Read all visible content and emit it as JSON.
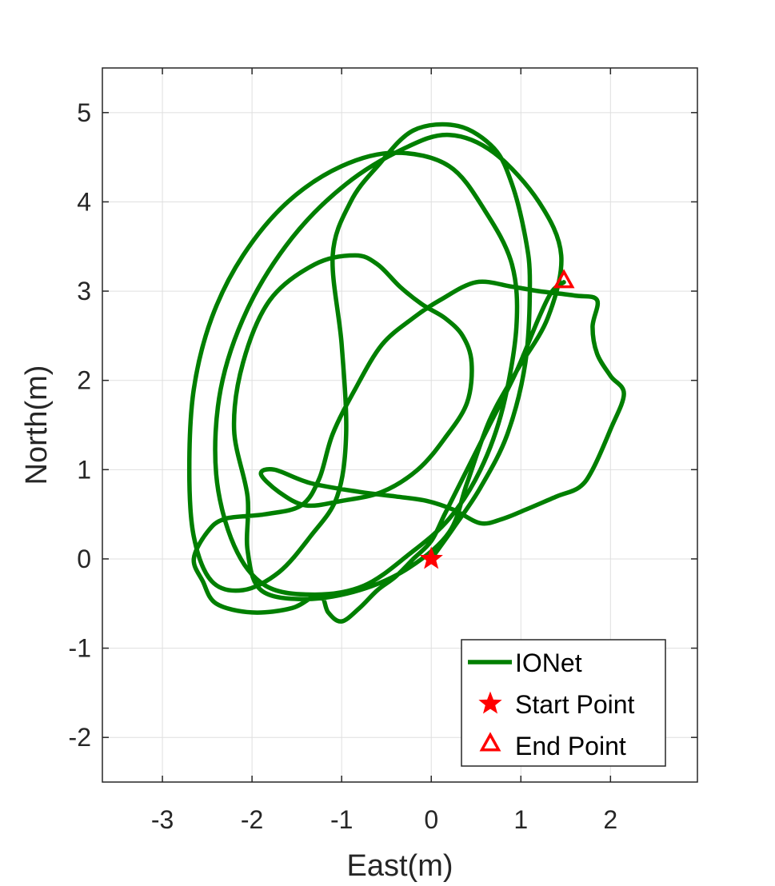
{
  "chart_data": {
    "type": "line",
    "title": "",
    "xlabel": "East(m)",
    "ylabel": "North(m)",
    "xlim": [
      -3.67,
      2.97
    ],
    "ylim": [
      -2.5,
      5.5
    ],
    "xticks": [
      -3,
      -2,
      -1,
      0,
      1,
      2
    ],
    "yticks": [
      -2,
      -1,
      0,
      1,
      2,
      3,
      4,
      5
    ],
    "xtick_labels": [
      "-3",
      "-2",
      "-1",
      "0",
      "1",
      "2"
    ],
    "ytick_labels": [
      "-2",
      "-1",
      "0",
      "1",
      "2",
      "3",
      "4",
      "5"
    ],
    "grid": true,
    "legend_position": "bottom-right",
    "series": [
      {
        "name": "IONet",
        "color": "#007f00",
        "points": [
          [
            0.0,
            0.0
          ],
          [
            0.25,
            0.35
          ],
          [
            0.55,
            0.8
          ],
          [
            0.85,
            1.4
          ],
          [
            1.05,
            2.2
          ],
          [
            1.1,
            3.1
          ],
          [
            1.05,
            3.6
          ],
          [
            0.9,
            4.2
          ],
          [
            0.7,
            4.6
          ],
          [
            0.3,
            4.85
          ],
          [
            -0.2,
            4.8
          ],
          [
            -0.6,
            4.4
          ],
          [
            -0.9,
            4.0
          ],
          [
            -1.1,
            3.4
          ],
          [
            -1.0,
            2.4
          ],
          [
            -0.95,
            1.4
          ],
          [
            -1.05,
            0.7
          ],
          [
            -1.35,
            0.25
          ],
          [
            -1.7,
            -0.15
          ],
          [
            -2.1,
            -0.35
          ],
          [
            -2.45,
            -0.25
          ],
          [
            -2.65,
            0.25
          ],
          [
            -2.7,
            1.0
          ],
          [
            -2.65,
            1.9
          ],
          [
            -2.45,
            2.7
          ],
          [
            -2.1,
            3.4
          ],
          [
            -1.6,
            4.0
          ],
          [
            -1.0,
            4.4
          ],
          [
            -0.4,
            4.55
          ],
          [
            0.2,
            4.4
          ],
          [
            0.6,
            3.9
          ],
          [
            0.9,
            3.3
          ],
          [
            0.95,
            2.6
          ],
          [
            0.8,
            1.7
          ],
          [
            0.55,
            1.0
          ],
          [
            0.2,
            0.45
          ],
          [
            -0.25,
            0.05
          ],
          [
            -0.75,
            -0.3
          ],
          [
            -1.3,
            -0.4
          ],
          [
            -1.85,
            -0.3
          ],
          [
            -2.2,
            0.15
          ],
          [
            -2.4,
            0.95
          ],
          [
            -2.35,
            1.9
          ],
          [
            -2.05,
            2.8
          ],
          [
            -1.55,
            3.6
          ],
          [
            -0.95,
            4.2
          ],
          [
            -0.3,
            4.6
          ],
          [
            0.2,
            4.75
          ],
          [
            0.7,
            4.55
          ],
          [
            1.2,
            4.0
          ],
          [
            1.45,
            3.4
          ],
          [
            1.3,
            2.7
          ],
          [
            0.95,
            2.1
          ],
          [
            0.65,
            1.55
          ],
          [
            0.4,
            0.85
          ],
          [
            0.2,
            0.3
          ],
          [
            -0.25,
            -0.1
          ],
          [
            -0.8,
            -0.35
          ],
          [
            -1.4,
            -0.45
          ],
          [
            -1.9,
            -0.35
          ],
          [
            -2.05,
            0.1
          ],
          [
            -2.05,
            0.7
          ],
          [
            -2.2,
            1.45
          ],
          [
            -2.1,
            2.2
          ],
          [
            -1.8,
            2.9
          ],
          [
            -1.3,
            3.3
          ],
          [
            -0.85,
            3.4
          ],
          [
            -0.6,
            3.3
          ],
          [
            -0.35,
            3.05
          ],
          [
            -0.1,
            2.85
          ],
          [
            0.15,
            2.7
          ],
          [
            0.35,
            2.5
          ],
          [
            0.45,
            2.2
          ],
          [
            0.4,
            1.75
          ],
          [
            0.15,
            1.35
          ],
          [
            -0.15,
            1.0
          ],
          [
            -0.55,
            0.75
          ],
          [
            -1.0,
            0.65
          ],
          [
            -1.4,
            0.6
          ],
          [
            -1.7,
            0.75
          ],
          [
            -1.9,
            0.95
          ],
          [
            -1.75,
            1.0
          ],
          [
            -1.35,
            0.85
          ],
          [
            -0.8,
            0.75
          ],
          [
            -0.4,
            0.7
          ],
          [
            -0.05,
            0.65
          ],
          [
            0.25,
            0.55
          ],
          [
            0.55,
            0.4
          ],
          [
            0.8,
            0.45
          ],
          [
            1.05,
            0.55
          ],
          [
            1.4,
            0.7
          ],
          [
            1.65,
            0.8
          ],
          [
            1.8,
            1.0
          ],
          [
            2.0,
            1.45
          ],
          [
            2.15,
            1.85
          ],
          [
            2.0,
            2.05
          ],
          [
            1.85,
            2.3
          ],
          [
            1.8,
            2.6
          ],
          [
            1.85,
            2.9
          ],
          [
            1.6,
            2.95
          ],
          [
            1.2,
            3.0
          ],
          [
            0.9,
            3.05
          ],
          [
            0.5,
            3.1
          ],
          [
            0.1,
            2.9
          ],
          [
            -0.2,
            2.7
          ],
          [
            -0.55,
            2.4
          ],
          [
            -0.85,
            1.9
          ],
          [
            -1.1,
            1.4
          ],
          [
            -1.25,
            0.9
          ],
          [
            -1.45,
            0.6
          ],
          [
            -1.85,
            0.5
          ],
          [
            -2.3,
            0.45
          ],
          [
            -2.5,
            0.3
          ],
          [
            -2.65,
            0.0
          ],
          [
            -2.55,
            -0.25
          ],
          [
            -2.4,
            -0.5
          ],
          [
            -2.0,
            -0.6
          ],
          [
            -1.55,
            -0.55
          ],
          [
            -1.25,
            -0.4
          ],
          [
            -1.15,
            -0.6
          ],
          [
            -1.0,
            -0.7
          ],
          [
            -0.8,
            -0.55
          ],
          [
            -0.6,
            -0.35
          ],
          [
            -0.4,
            -0.2
          ],
          [
            -0.2,
            0.0
          ],
          [
            0.0,
            0.2
          ],
          [
            0.15,
            0.5
          ],
          [
            0.35,
            0.9
          ],
          [
            0.65,
            1.5
          ],
          [
            0.95,
            2.1
          ],
          [
            1.2,
            2.7
          ],
          [
            1.35,
            3.0
          ],
          [
            1.48,
            3.1
          ]
        ]
      }
    ],
    "markers": [
      {
        "name": "Start Point",
        "x": 0.0,
        "y": 0.0,
        "symbol": "star",
        "color": "#ff0000"
      },
      {
        "name": "End Point",
        "x": 1.48,
        "y": 3.1,
        "symbol": "triangle",
        "color": "#ff0000"
      }
    ],
    "legend": [
      {
        "label": "IONet",
        "symbol": "line",
        "color": "#007f00"
      },
      {
        "label": "Start Point",
        "symbol": "star",
        "color": "#ff0000"
      },
      {
        "label": "End Point",
        "symbol": "triangle",
        "color": "#ff0000"
      }
    ]
  }
}
